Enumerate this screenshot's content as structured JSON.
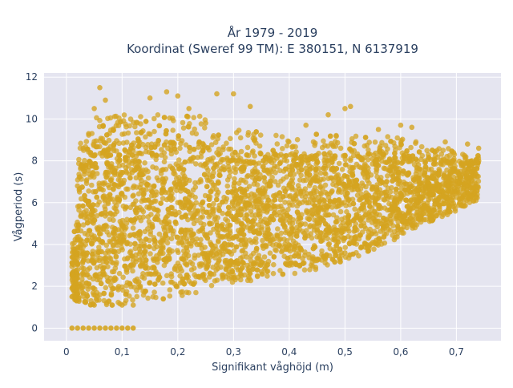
{
  "chart_data": {
    "type": "scatter",
    "title_lines": [
      "År 1979 - 2019",
      "Koordinat (Sweref 99 TM): E 380151, N 6137919"
    ],
    "xlabel": "Signifikant våghöjd (m)",
    "ylabel": "Vågperiod (s)",
    "xlim": [
      -0.04,
      0.78
    ],
    "ylim": [
      -0.6,
      12.2
    ],
    "x_ticks": [
      0,
      0.1,
      0.2,
      0.3,
      0.4,
      0.5,
      0.6,
      0.7
    ],
    "x_tick_labels": [
      "0",
      "0,1",
      "0,2",
      "0,3",
      "0,4",
      "0,5",
      "0,6",
      "0,7"
    ],
    "y_ticks": [
      0,
      2,
      4,
      6,
      8,
      10,
      12
    ],
    "y_tick_labels": [
      "0",
      "2",
      "4",
      "6",
      "8",
      "10",
      "12"
    ],
    "grid": true,
    "legend": "none",
    "marker_color": "#D4A420",
    "background_color": "#E5E5F0",
    "series": [
      {
        "points_sample": [
          [
            0.01,
            1.5
          ],
          [
            0.01,
            1.9
          ],
          [
            0.02,
            2.4
          ],
          [
            0.02,
            6.8
          ],
          [
            0.03,
            8.6
          ],
          [
            0.04,
            9.3
          ],
          [
            0.05,
            10.5
          ],
          [
            0.06,
            11.5
          ],
          [
            0.07,
            10.9
          ],
          [
            0.05,
            1.1
          ],
          [
            0.1,
            1.1
          ],
          [
            0.12,
            1.1
          ],
          [
            0.15,
            11.0
          ],
          [
            0.18,
            11.3
          ],
          [
            0.2,
            11.1
          ],
          [
            0.22,
            10.5
          ],
          [
            0.25,
            9.8
          ],
          [
            0.27,
            11.2
          ],
          [
            0.3,
            11.2
          ],
          [
            0.33,
            10.6
          ],
          [
            0.3,
            2.4
          ],
          [
            0.35,
            2.7
          ],
          [
            0.4,
            3.0
          ],
          [
            0.45,
            3.3
          ],
          [
            0.5,
            3.6
          ],
          [
            0.55,
            4.1
          ],
          [
            0.6,
            4.7
          ],
          [
            0.65,
            5.7
          ],
          [
            0.7,
            6.8
          ],
          [
            0.74,
            8.0
          ],
          [
            0.74,
            8.6
          ],
          [
            0.47,
            10.2
          ],
          [
            0.5,
            10.5
          ],
          [
            0.51,
            10.6
          ],
          [
            0.62,
            9.6
          ],
          [
            0.68,
            8.9
          ],
          [
            0.72,
            8.8
          ],
          [
            0.6,
            9.7
          ],
          [
            0.56,
            9.5
          ],
          [
            0.43,
            9.7
          ]
        ]
      },
      {
        "zero_period_points_x": [
          0.01,
          0.02,
          0.03,
          0.04,
          0.05,
          0.06,
          0.07,
          0.08,
          0.09,
          0.1,
          0.11,
          0.12
        ],
        "zero_period_points_y": 0
      }
    ]
  }
}
